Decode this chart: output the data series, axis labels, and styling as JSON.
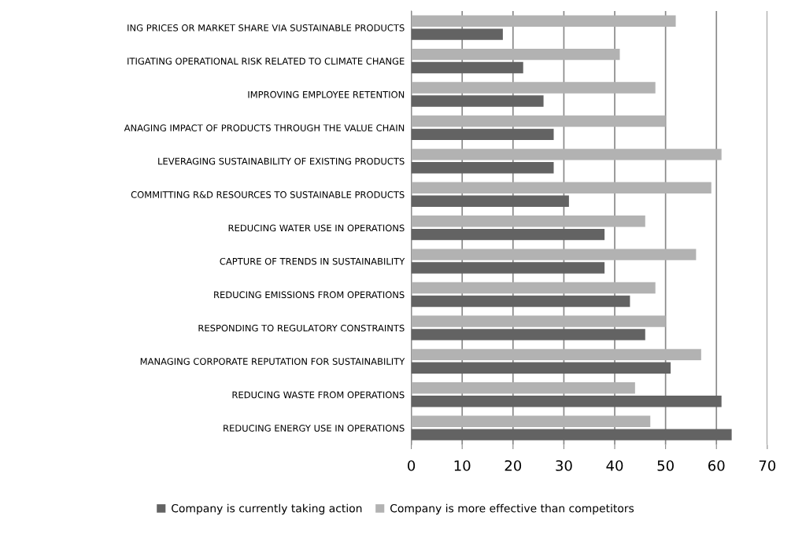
{
  "chart_data": {
    "type": "bar",
    "orientation": "horizontal",
    "categories": [
      "ING PRICES OR MARKET SHARE VIA SUSTAINABLE PRODUCTS",
      "ITIGATING OPERATIONAL RISK RELATED TO CLIMATE CHANGE",
      "IMPROVING EMPLOYEE RETENTION",
      "ANAGING IMPACT OF PRODUCTS THROUGH THE VALUE CHAIN",
      "LEVERAGING SUSTAINABILITY OF EXISTING PRODUCTS",
      "COMMITTING R&D RESOURCES TO SUSTAINABLE PRODUCTS",
      "REDUCING WATER USE IN OPERATIONS",
      "CAPTURE OF TRENDS IN SUSTAINABILITY",
      "REDUCING EMISSIONS FROM OPERATIONS",
      "RESPONDING TO REGULATORY CONSTRAINTS",
      "MANAGING CORPORATE REPUTATION FOR SUSTAINABILITY",
      "REDUCING WASTE FROM OPERATIONS",
      "REDUCING ENERGY USE IN OPERATIONS"
    ],
    "series": [
      {
        "name": "Company is currently taking action",
        "color": "#636363",
        "values": [
          18,
          22,
          26,
          28,
          28,
          31,
          38,
          38,
          43,
          46,
          51,
          61,
          63
        ]
      },
      {
        "name": "Company is more effective than competitors",
        "color": "#b2b2b2",
        "values": [
          52,
          41,
          48,
          50,
          61,
          59,
          46,
          56,
          48,
          50,
          57,
          44,
          47
        ]
      }
    ],
    "xlim": [
      0,
      70
    ],
    "xticks": [
      0,
      10,
      20,
      30,
      40,
      50,
      60,
      70
    ],
    "grid": "x",
    "legend": "bottom"
  }
}
